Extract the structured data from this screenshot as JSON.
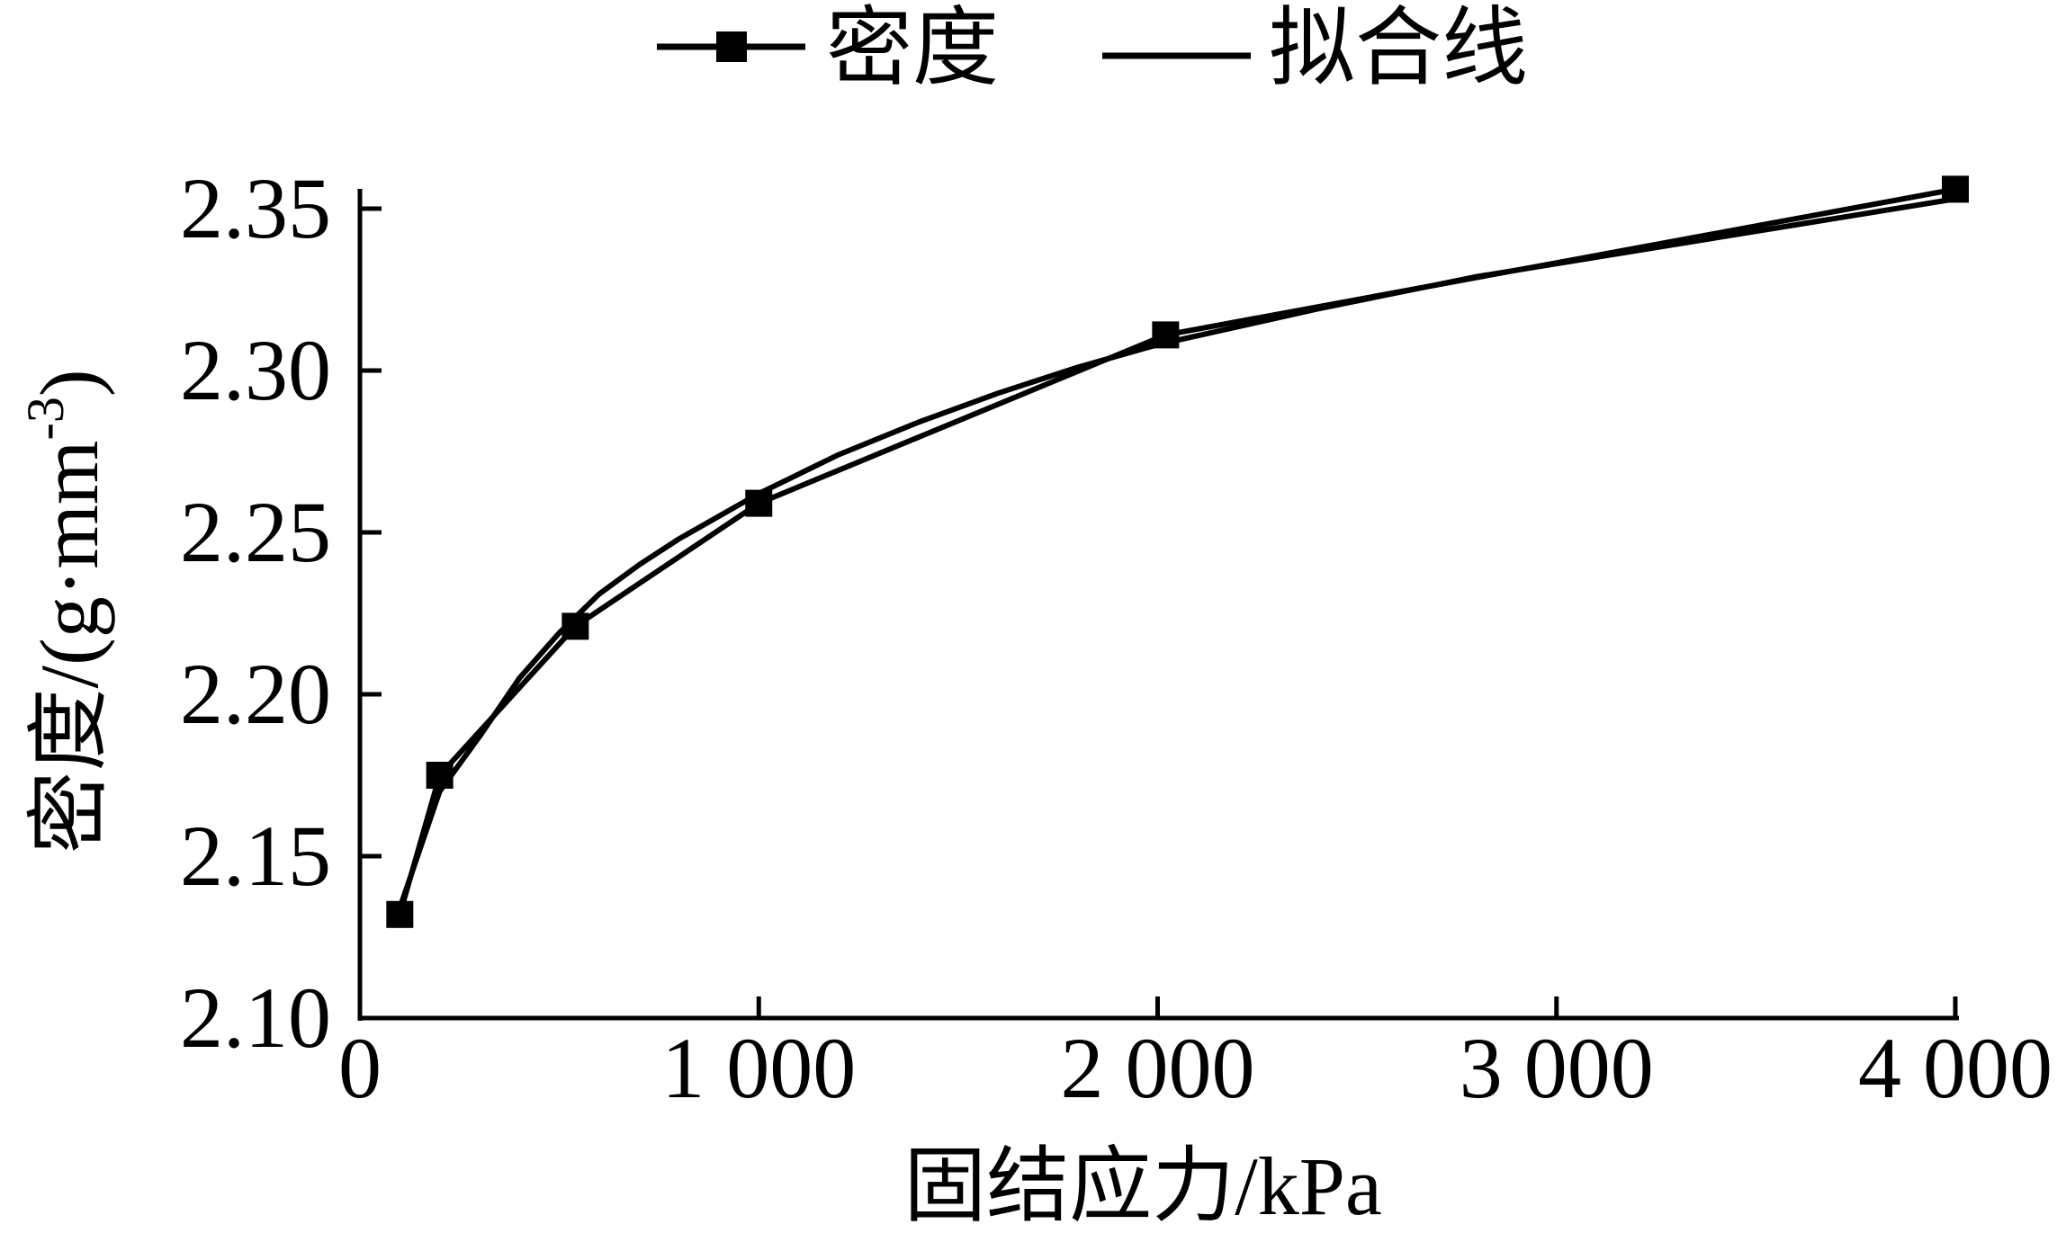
{
  "chart_data": {
    "type": "line",
    "title": "",
    "xlabel": "固结应力/kPa",
    "ylabel_main": "密度/(g·mm",
    "ylabel_superscript": "-3",
    "ylabel_close": ")",
    "xlim": [
      0,
      4000
    ],
    "ylim": [
      2.1,
      2.35
    ],
    "x_ticks": [
      {
        "value": 0,
        "label": "0"
      },
      {
        "value": 1000,
        "label": "1 000"
      },
      {
        "value": 2000,
        "label": "2 000"
      },
      {
        "value": 3000,
        "label": "3 000"
      },
      {
        "value": 4000,
        "label": "4 000"
      }
    ],
    "y_ticks": [
      {
        "value": 2.1,
        "label": "2.10"
      },
      {
        "value": 2.15,
        "label": "2.15"
      },
      {
        "value": 2.2,
        "label": "2.20"
      },
      {
        "value": 2.25,
        "label": "2.25"
      },
      {
        "value": 2.3,
        "label": "2.30"
      },
      {
        "value": 2.35,
        "label": "2.35"
      }
    ],
    "grid": false,
    "legend_position": "top-center",
    "series": [
      {
        "name": "密度",
        "style": "line-with-square-markers",
        "color": "#000000",
        "x": [
          100,
          200,
          540,
          1000,
          2020,
          4000
        ],
        "y": [
          2.132,
          2.175,
          2.221,
          2.259,
          2.311,
          2.356
        ]
      },
      {
        "name": "拟合线",
        "style": "line",
        "color": "#000000",
        "x": [
          100,
          200,
          300,
          400,
          500,
          600,
          700,
          800,
          1000,
          1200,
          1400,
          1600,
          1800,
          2000,
          2400,
          2800,
          3200,
          3600,
          4000
        ],
        "y": [
          2.134,
          2.17,
          2.187,
          2.205,
          2.219,
          2.231,
          2.24,
          2.248,
          2.262,
          2.274,
          2.284,
          2.293,
          2.301,
          2.308,
          2.319,
          2.329,
          2.337,
          2.345,
          2.353
        ]
      }
    ]
  }
}
